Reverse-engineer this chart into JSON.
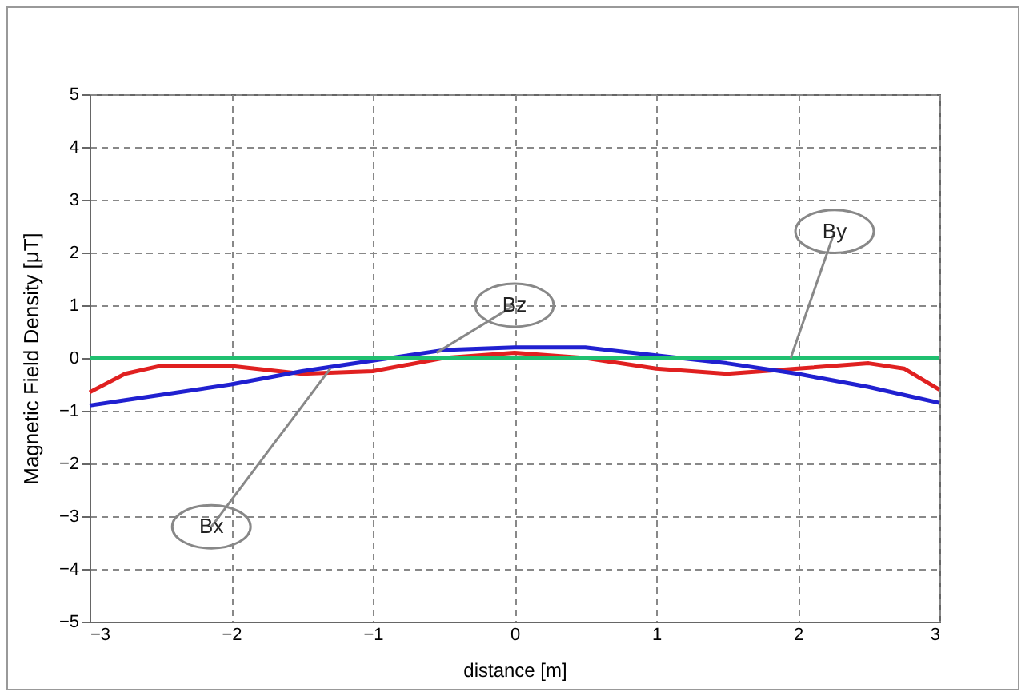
{
  "chart_data": {
    "type": "line",
    "xlabel": "distance [m]",
    "ylabel": "Magnetic Field Density [μT]",
    "xlim": [
      -3,
      3
    ],
    "ylim": [
      -5,
      5
    ],
    "xticks": [
      -3,
      -2,
      -1,
      0,
      1,
      2,
      3
    ],
    "yticks": [
      -5,
      -4,
      -3,
      -2,
      -1,
      0,
      1,
      2,
      3,
      4,
      5
    ],
    "grid": true,
    "x": [
      -3,
      -2.75,
      -2.5,
      -2,
      -1.5,
      -1,
      -0.5,
      0,
      0.5,
      1,
      1.5,
      2,
      2.5,
      2.75,
      3
    ],
    "series": [
      {
        "color": "#e02020",
        "values": [
          -0.65,
          -0.3,
          -0.15,
          -0.15,
          -0.3,
          -0.25,
          0,
          0.1,
          0,
          -0.2,
          -0.3,
          -0.2,
          -0.1,
          -0.2,
          -0.6
        ]
      },
      {
        "color": "#2020d0",
        "values": [
          -0.9,
          -0.8,
          -0.7,
          -0.5,
          -0.25,
          -0.05,
          0.15,
          0.2,
          0.2,
          0.05,
          -0.1,
          -0.3,
          -0.55,
          -0.7,
          -0.85
        ]
      },
      {
        "color": "#20c070",
        "values": [
          0,
          0,
          0,
          0,
          0,
          0,
          0,
          0,
          0,
          0,
          0,
          0,
          0,
          0,
          0
        ]
      }
    ],
    "annotations": [
      {
        "text": "Bz",
        "x": -0.55,
        "y": 0.1
      },
      {
        "text": "By",
        "x": 1.95,
        "y": 0
      },
      {
        "text": "Bx",
        "x": -1.3,
        "y": -0.2
      }
    ]
  }
}
